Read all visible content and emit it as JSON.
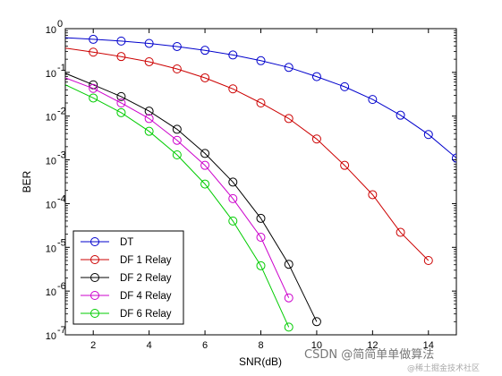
{
  "chart_data": {
    "type": "line",
    "xlabel": "SNR(dB)",
    "ylabel": "BER",
    "xlim": [
      1,
      15
    ],
    "ylim_exp": [
      -7,
      0
    ],
    "y_scale": "log",
    "x_ticks": [
      2,
      4,
      6,
      8,
      10,
      12,
      14
    ],
    "y_ticks": [
      {
        "base": "10",
        "exp": "0"
      },
      {
        "base": "10",
        "exp": "-1"
      },
      {
        "base": "10",
        "exp": "-2"
      },
      {
        "base": "10",
        "exp": "-3"
      },
      {
        "base": "10",
        "exp": "-4"
      },
      {
        "base": "10",
        "exp": "-5"
      },
      {
        "base": "10",
        "exp": "-6"
      },
      {
        "base": "10",
        "exp": "-7"
      }
    ],
    "grid": false,
    "legend_position": "bottom-left",
    "series": [
      {
        "name": "DT",
        "color": "#0000cc",
        "line_x": [
          1,
          2,
          3,
          4,
          5,
          6,
          7,
          8,
          9,
          10,
          11,
          12,
          13,
          14,
          15
        ],
        "line_y": [
          0.62,
          0.57,
          0.52,
          0.46,
          0.39,
          0.32,
          0.25,
          0.185,
          0.13,
          0.08,
          0.047,
          0.024,
          0.0105,
          0.0038,
          0.0011
        ],
        "marker_x": [
          2,
          3,
          4,
          5,
          6,
          7,
          8,
          9,
          10,
          11,
          12,
          13,
          14,
          15
        ],
        "marker_y": [
          0.57,
          0.52,
          0.46,
          0.39,
          0.32,
          0.25,
          0.185,
          0.13,
          0.08,
          0.047,
          0.024,
          0.0105,
          0.0038,
          0.0011
        ]
      },
      {
        "name": "DF 1 Relay",
        "color": "#cc0000",
        "line_x": [
          1,
          2,
          3,
          4,
          5,
          6,
          7,
          8,
          9,
          10,
          11,
          12,
          13,
          14
        ],
        "line_y": [
          0.36,
          0.29,
          0.23,
          0.175,
          0.12,
          0.075,
          0.042,
          0.02,
          0.0088,
          0.003,
          0.00075,
          0.00016,
          2.2e-05,
          5e-06
        ],
        "marker_x": [
          2,
          3,
          4,
          5,
          6,
          7,
          8,
          9,
          10,
          11,
          12,
          13,
          14
        ],
        "marker_y": [
          0.29,
          0.23,
          0.175,
          0.12,
          0.075,
          0.042,
          0.02,
          0.0088,
          0.003,
          0.00075,
          0.00016,
          2.2e-05,
          5e-06
        ]
      },
      {
        "name": "DF 2 Relay",
        "color": "#000000",
        "line_x": [
          1,
          2,
          3,
          4,
          5,
          6,
          7,
          8,
          9,
          10
        ],
        "line_y": [
          0.095,
          0.052,
          0.028,
          0.013,
          0.005,
          0.0014,
          0.00031,
          4.6e-05,
          4.1e-06,
          2e-07
        ],
        "marker_x": [
          2,
          3,
          4,
          5,
          6,
          7,
          8,
          9,
          10
        ],
        "marker_y": [
          0.052,
          0.028,
          0.013,
          0.005,
          0.0014,
          0.00031,
          4.6e-05,
          4.1e-06,
          2e-07
        ]
      },
      {
        "name": "DF 4 Relay",
        "color": "#cc00cc",
        "line_x": [
          1,
          2,
          3,
          4,
          5,
          6,
          7,
          8,
          9
        ],
        "line_y": [
          0.075,
          0.043,
          0.02,
          0.0088,
          0.0028,
          0.00075,
          0.00013,
          1.7e-05,
          7e-07
        ],
        "marker_x": [
          2,
          3,
          4,
          5,
          6,
          7,
          8,
          9
        ],
        "marker_y": [
          0.043,
          0.02,
          0.0088,
          0.0028,
          0.00075,
          0.00013,
          1.7e-05,
          7e-07
        ]
      },
      {
        "name": "DF 6 Relay",
        "color": "#00cc00",
        "line_x": [
          1,
          2,
          3,
          4,
          5,
          6,
          7,
          8,
          9
        ],
        "line_y": [
          0.052,
          0.026,
          0.012,
          0.0045,
          0.0013,
          0.00028,
          4e-05,
          3.8e-06,
          1.5e-07
        ],
        "marker_x": [
          2,
          3,
          4,
          5,
          6,
          7,
          8,
          9
        ],
        "marker_y": [
          0.026,
          0.012,
          0.0045,
          0.0013,
          0.00028,
          4e-05,
          3.8e-06,
          1.5e-07
        ]
      }
    ]
  },
  "watermark": {
    "main": "CSDN @简简单单做算法",
    "sub": "@稀土掘金技术社区"
  }
}
